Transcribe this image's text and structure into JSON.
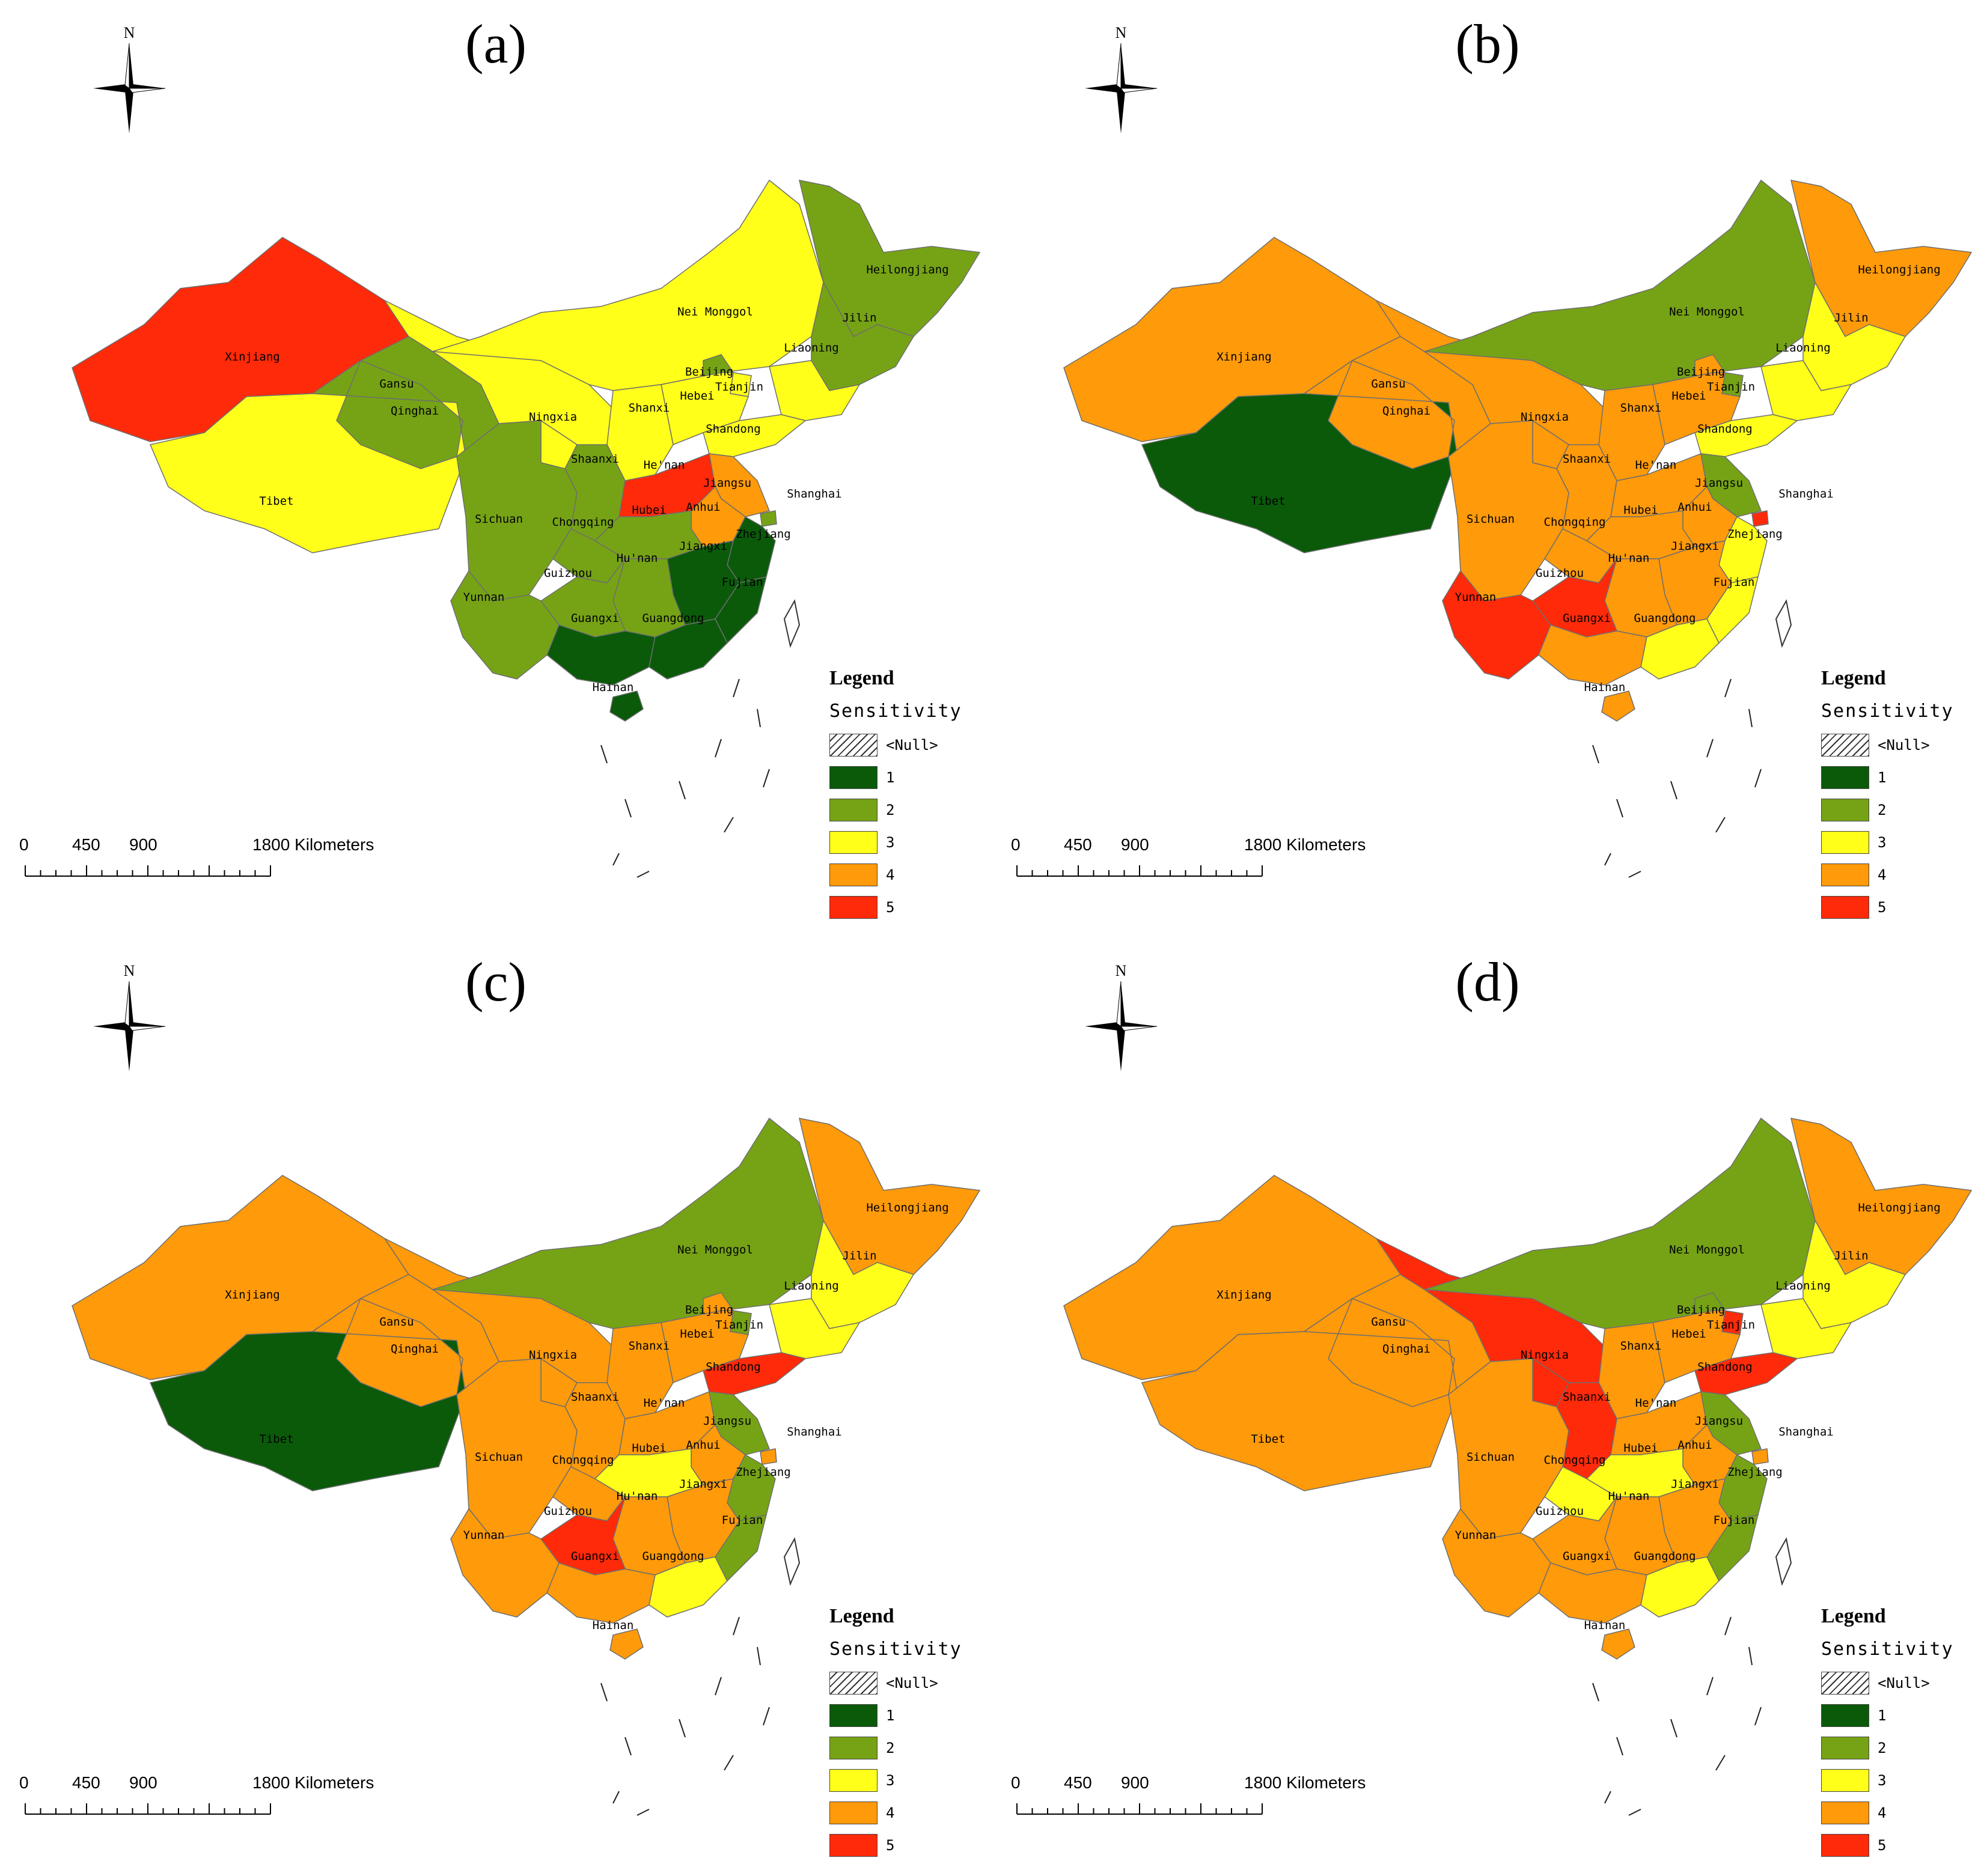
{
  "colors": {
    "1": "#0a5a0a",
    "2": "#76a316",
    "3": "#ffff1a",
    "4": "#ff9a0a",
    "5": "#ff2a0a",
    "border": "#6e6e6e"
  },
  "legend": {
    "title": "Legend",
    "subtitle": "Sensitivity",
    "null_label": "<Null>",
    "classes": [
      "1",
      "2",
      "3",
      "4",
      "5"
    ]
  },
  "scalebar": {
    "ticks": [
      "0",
      "450",
      "900",
      "1800 Kilometers"
    ]
  },
  "compass": {
    "north": "N"
  },
  "provinces": [
    "Xinjiang",
    "Tibet",
    "Qinghai",
    "Gansu",
    "Nei Monggol",
    "Heilongjiang",
    "Jilin",
    "Liaoning",
    "Beijing",
    "Tianjin",
    "Hebei",
    "Shanxi",
    "Shandong",
    "Ningxia",
    "Shaanxi",
    "He'nan",
    "Jiangsu",
    "Shanghai",
    "Anhui",
    "Hubei",
    "Sichuan",
    "Chongqing",
    "Zhejiang",
    "Jiangxi",
    "Hu'nan",
    "Guizhou",
    "Yunnan",
    "Guangxi",
    "Guangdong",
    "Fujian",
    "Hainan"
  ],
  "panels": [
    {
      "title": "(a)",
      "sensitivity": {
        "Xinjiang": 5,
        "Tibet": 3,
        "Qinghai": 2,
        "Gansu": 3,
        "Nei Monggol": 3,
        "Heilongjiang": 2,
        "Jilin": 2,
        "Liaoning": 3,
        "Beijing": 2,
        "Tianjin": 3,
        "Hebei": 3,
        "Shanxi": 3,
        "Shandong": 3,
        "Ningxia": 3,
        "Shaanxi": 2,
        "He'nan": 5,
        "Jiangsu": 4,
        "Shanghai": 2,
        "Anhui": 4,
        "Hubei": 2,
        "Sichuan": 2,
        "Chongqing": 2,
        "Zhejiang": 1,
        "Jiangxi": 1,
        "Hu'nan": 2,
        "Guizhou": 2,
        "Yunnan": 2,
        "Guangxi": 1,
        "Guangdong": 1,
        "Fujian": 1,
        "Hainan": 1
      }
    },
    {
      "title": "(b)",
      "sensitivity": {
        "Xinjiang": 4,
        "Tibet": 1,
        "Qinghai": 4,
        "Gansu": 4,
        "Nei Monggol": 2,
        "Heilongjiang": 4,
        "Jilin": 3,
        "Liaoning": 3,
        "Beijing": 4,
        "Tianjin": 2,
        "Hebei": 4,
        "Shanxi": 4,
        "Shandong": 3,
        "Ningxia": 4,
        "Shaanxi": 4,
        "He'nan": 4,
        "Jiangsu": 2,
        "Shanghai": 5,
        "Anhui": 4,
        "Hubei": 4,
        "Sichuan": 4,
        "Chongqing": 4,
        "Zhejiang": 3,
        "Jiangxi": 4,
        "Hu'nan": 4,
        "Guizhou": 5,
        "Yunnan": 5,
        "Guangxi": 4,
        "Guangdong": 3,
        "Fujian": 3,
        "Hainan": 4
      }
    },
    {
      "title": "(c)",
      "sensitivity": {
        "Xinjiang": 4,
        "Tibet": 1,
        "Qinghai": 4,
        "Gansu": 4,
        "Nei Monggol": 2,
        "Heilongjiang": 4,
        "Jilin": 3,
        "Liaoning": 3,
        "Beijing": 4,
        "Tianjin": 2,
        "Hebei": 4,
        "Shanxi": 4,
        "Shandong": 5,
        "Ningxia": 4,
        "Shaanxi": 4,
        "He'nan": 4,
        "Jiangsu": 2,
        "Shanghai": 4,
        "Anhui": 4,
        "Hubei": 3,
        "Sichuan": 4,
        "Chongqing": 4,
        "Zhejiang": 2,
        "Jiangxi": 4,
        "Hu'nan": 4,
        "Guizhou": 5,
        "Yunnan": 4,
        "Guangxi": 4,
        "Guangdong": 3,
        "Fujian": 2,
        "Hainan": 4
      }
    },
    {
      "title": "(d)",
      "sensitivity": {
        "Xinjiang": 4,
        "Tibet": 4,
        "Qinghai": 4,
        "Gansu": 5,
        "Nei Monggol": 2,
        "Heilongjiang": 4,
        "Jilin": 3,
        "Liaoning": 3,
        "Beijing": 2,
        "Tianjin": 5,
        "Hebei": 4,
        "Shanxi": 4,
        "Shandong": 5,
        "Ningxia": 5,
        "Shaanxi": 5,
        "He'nan": 4,
        "Jiangsu": 2,
        "Shanghai": 4,
        "Anhui": 4,
        "Hubei": 3,
        "Sichuan": 4,
        "Chongqing": 3,
        "Zhejiang": 2,
        "Jiangxi": 4,
        "Hu'nan": 4,
        "Guizhou": 4,
        "Yunnan": 4,
        "Guangxi": 4,
        "Guangdong": 3,
        "Fujian": 2,
        "Hainan": 4
      }
    }
  ]
}
